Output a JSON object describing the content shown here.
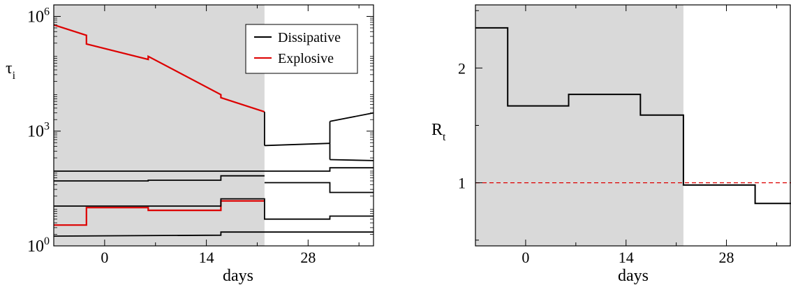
{
  "chart_data": [
    {
      "type": "line",
      "panel": "left",
      "xlabel": "days",
      "ylabel": "τ",
      "ylabel_subscript": "i",
      "yscale": "log",
      "xlim": [
        -7,
        37
      ],
      "ylim": [
        1,
        2000000
      ],
      "xticks": [
        0,
        14,
        28
      ],
      "yticks": [
        {
          "value": 1,
          "base": "10",
          "exp": "0"
        },
        {
          "value": 1000,
          "base": "10",
          "exp": "3"
        },
        {
          "value": 1000000,
          "base": "10",
          "exp": "6"
        }
      ],
      "shaded_region": {
        "x0": -7,
        "x1": 22,
        "color": "#d9d9d9"
      },
      "legend": {
        "placement": "top-right",
        "entries": [
          {
            "label": "Dissipative",
            "color": "#000000"
          },
          {
            "label": "Explosive",
            "color": "#dd0000"
          }
        ]
      },
      "series": [
        {
          "kind": "explosive",
          "color": "#dd0000",
          "points": [
            [
              -7,
              600000
            ],
            [
              -2.5,
              320000
            ],
            [
              -2.5,
              190000
            ],
            [
              6,
              75000
            ],
            [
              6,
              90000
            ],
            [
              16,
              9000
            ],
            [
              16,
              7500
            ],
            [
              22,
              3200
            ]
          ]
        },
        {
          "kind": "explosive",
          "color": "#dd0000",
          "points": [
            [
              -7,
              3.5
            ],
            [
              -2.5,
              3.5
            ],
            [
              -2.5,
              10
            ],
            [
              6,
              10
            ],
            [
              6,
              8.5
            ],
            [
              16,
              8.5
            ],
            [
              16,
              15
            ],
            [
              22,
              15
            ]
          ]
        },
        {
          "kind": "dissipative",
          "color": "#000000",
          "points": [
            [
              -7,
              1.8
            ],
            [
              16,
              1.9
            ],
            [
              16,
              2.3
            ],
            [
              22,
              2.3
            ],
            [
              37,
              2.3
            ]
          ]
        },
        {
          "kind": "dissipative",
          "color": "#000000",
          "points": [
            [
              -7,
              11
            ],
            [
              16,
              11
            ],
            [
              16,
              17
            ],
            [
              22,
              17
            ],
            [
              22,
              5
            ],
            [
              31,
              5
            ],
            [
              31,
              6
            ],
            [
              37,
              6
            ]
          ]
        },
        {
          "kind": "dissipative",
          "color": "#000000",
          "points": [
            [
              -7,
              50
            ],
            [
              6,
              50
            ],
            [
              6,
              52
            ],
            [
              16,
              52
            ],
            [
              16,
              68
            ],
            [
              22,
              68
            ]
          ]
        },
        {
          "kind": "dissipative",
          "color": "#000000",
          "points": [
            [
              -7,
              90
            ],
            [
              22,
              90
            ],
            [
              31,
              90
            ],
            [
              31,
              110
            ],
            [
              37,
              110
            ]
          ]
        },
        {
          "kind": "dissipative",
          "color": "#000000",
          "points": [
            [
              22,
              45
            ],
            [
              31,
              45
            ],
            [
              31,
              25
            ],
            [
              37,
              25
            ]
          ]
        },
        {
          "kind": "dissipative",
          "color": "#000000",
          "points": [
            [
              22,
              420
            ],
            [
              31,
              480
            ]
          ]
        },
        {
          "kind": "dissipative",
          "color": "#000000",
          "points": [
            [
              31,
              180
            ],
            [
              37,
              170
            ]
          ]
        },
        {
          "kind": "dissipative",
          "color": "#000000",
          "points": [
            [
              31,
              1800
            ],
            [
              37,
              3000
            ]
          ]
        },
        {
          "kind": "dissipative",
          "color": "#000000",
          "points": [
            [
              22,
              3200
            ],
            [
              22,
              420
            ]
          ]
        },
        {
          "kind": "dissipative",
          "color": "#000000",
          "points": [
            [
              31,
              480
            ],
            [
              31,
              1800
            ]
          ]
        },
        {
          "kind": "dissipative",
          "color": "#000000",
          "points": [
            [
              31,
              180
            ],
            [
              31,
              480
            ]
          ]
        }
      ]
    },
    {
      "type": "line",
      "panel": "right",
      "xlabel": "days",
      "ylabel": "R",
      "ylabel_subscript": "t",
      "yscale": "linear",
      "xlim": [
        -7,
        37
      ],
      "ylim": [
        0.45,
        2.55
      ],
      "xticks": [
        0,
        14,
        28
      ],
      "yticks": [
        1,
        2
      ],
      "shaded_region": {
        "x0": -7,
        "x1": 22,
        "color": "#d9d9d9"
      },
      "reference_line": {
        "y": 1,
        "color": "#dd0000",
        "style": "dashed"
      },
      "series": [
        {
          "color": "#000000",
          "step_points": [
            [
              -7,
              2.35
            ],
            [
              -2.5,
              2.35
            ],
            [
              -2.5,
              1.67
            ],
            [
              6,
              1.67
            ],
            [
              6,
              1.77
            ],
            [
              16,
              1.77
            ],
            [
              16,
              1.59
            ],
            [
              22,
              1.59
            ],
            [
              22,
              0.98
            ],
            [
              32,
              0.98
            ],
            [
              32,
              0.82
            ],
            [
              37,
              0.82
            ]
          ]
        }
      ]
    }
  ]
}
